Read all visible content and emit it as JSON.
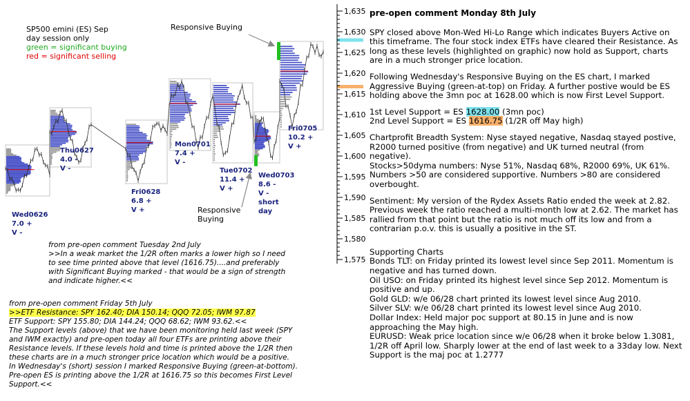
{
  "chart_data": {
    "type": "line",
    "title": "SP500 emini (ES) Sep",
    "subtitle": "day session only",
    "legend": [
      {
        "text": "green = significant buying",
        "color_word": "green",
        "color": "#1ea81e"
      },
      {
        "text": "red = significant selling",
        "color_word": "red",
        "color": "#e00000"
      }
    ],
    "y_axis": {
      "side": "right",
      "ticks": [
        "1,635",
        "1,630",
        "1,625",
        "1,620",
        "1,615",
        "1,610",
        "1,605",
        "1,600",
        "1,595",
        "1,590",
        "1,585",
        "1,580",
        "1,575"
      ],
      "ylim": [
        1575,
        1635
      ]
    },
    "sessions": [
      {
        "label": "Wed0626",
        "change": "7.0 +",
        "dir": "V -",
        "open": 1597,
        "high": 1602,
        "low": 1591,
        "close": 1596
      },
      {
        "label": "Thu0627",
        "change": "4.0 -",
        "dir": "V -",
        "open": 1605,
        "high": 1611,
        "low": 1598,
        "close": 1608
      },
      {
        "label": "Fri0628",
        "change": "6.8 +",
        "dir": "V +",
        "open": 1602,
        "high": 1608,
        "low": 1594,
        "close": 1606
      },
      {
        "label": "Mon0701",
        "change": "7.4 +",
        "dir": "V -",
        "open": 1613,
        "high": 1618,
        "low": 1602,
        "close": 1612
      },
      {
        "label": "Tue0702",
        "change": "11.4 +",
        "dir": "V +",
        "open": 1614,
        "high": 1617,
        "low": 1599,
        "close": 1609
      },
      {
        "label": "Wed0703",
        "change": "8.6 -",
        "dir": "V -",
        "extra": "short day",
        "open": 1603,
        "high": 1610,
        "low": 1599,
        "close": 1609
      },
      {
        "label": "Fri0705",
        "change": "10.2 +",
        "dir": "V +",
        "open": 1619,
        "high": 1627,
        "low": 1607,
        "close": 1624
      }
    ],
    "annotations": [
      "Responsive Buying",
      "Responsive Buying"
    ],
    "highlight_levels": [
      {
        "value": 1628.0,
        "color": "#7fe3ee"
      },
      {
        "value": 1616.75,
        "color": "#f7b06b"
      }
    ]
  },
  "notes": {
    "tuesday_note": [
      "from pre-open comment Tuesday 2nd July",
      ">>In a weak market the 1/2R often marks a lower high so I need",
      "to see time printed above that level (1616.75)....and preferably",
      "with Significant Buying marked - that would be a sign of strength",
      "and indicate higher.<<"
    ],
    "friday_note": {
      "header": "from pre-open comment Friday 5th July",
      "resistance": ">>ETF Resistance: SPY 162.40; DIA 150.14; QQQ 72.05; IWM 97.87",
      "lines": [
        "ETF Support: SPY 155.80; DIA 144.24; QQQ 68.62; IWM 93.62.<<",
        "The Support levels (above) that we have been monitoring held last week (SPY",
        "and IWM exactly) and pre-open today all four ETFs are printing above their",
        "Resistance levels.  If these levels hold and time is printed above the 1/2R then",
        "these charts are in a much stronger price location which would be a positive.",
        "In Wednesday's (short) session I marked Responsive Buying (green-at-bottom).",
        "Pre-open ES is printing above the 1/2R at 1616.75 so this becomes First Level",
        "Support.<<"
      ]
    }
  },
  "comment": {
    "title": "pre-open comment Monday 8th July",
    "p1": "SPY closed above Mon-Wed Hi-Lo Range which indicates Buyers Active on this timeframe.  The four stock index ETFs have cleared their Resistance.  As long as these levels (highlighted on graphic) now hold as Support, charts are in a much stronger price location.",
    "p2": "Following Wednesday's Responsive Buying on the ES chart, I marked Aggressive Buying (green-at-top) on Friday.  A further postive would be ES holding above the 3mn poc at 1628.00 which is now First Level Support.",
    "support1_pre": "1st Level Support = ES ",
    "support1_val": "1628.00",
    "support1_post": " (3mn poc)",
    "support2_pre": "2nd Level Support =  ES ",
    "support2_val": "1616.75",
    "support2_post": " (1/2R off May high)",
    "p3": "Chartprofit Breadth System:  Nyse stayed negative, Nasdaq stayed postive, R2000 turned positive (from negative) and UK turned neutral (from negative).",
    "p4": "Stocks>50dyma numbers: Nyse 51%, Nasdaq 68%, R2000 69%, UK 61%.  Numbers >50 are considered supportive.   Numbers >80 are considered overbought.",
    "p5": "Sentiment: My version of the Rydex Assets Ratio ended the week at 2.82.  Previous week the ratio reached a multi-month low at 2.62.  The market has rallied from that point but the ratio is not much off its low and from a contrarian p.o.v. this is usually a positive in the ST.",
    "supporting_header": "Supporting Charts",
    "supporting": [
      "Bonds TLT: on Friday printed its lowest level since Sep 2011.  Momentum is negative and has turned down.",
      "Oil USO: on Friday printed its highest level since Sep 2012. Momentum is positive and up.",
      "Gold  GLD:  w/e 06/28 chart printed its lowest level since Aug 2010.",
      "Silver SLV: w/e 06/28 chart printed its lowest level since Aug 2010.",
      "Dollar Index:  Held major poc support at 80.15 in June and is now approaching the May high.",
      "EURUSD: Weak price location since w/e 06/28 when it broke below 1.3081, 1/2R off April low.  Sharply lower at the end of last week to a 33day low.  Next Support is the maj poc at 1.2777"
    ]
  }
}
